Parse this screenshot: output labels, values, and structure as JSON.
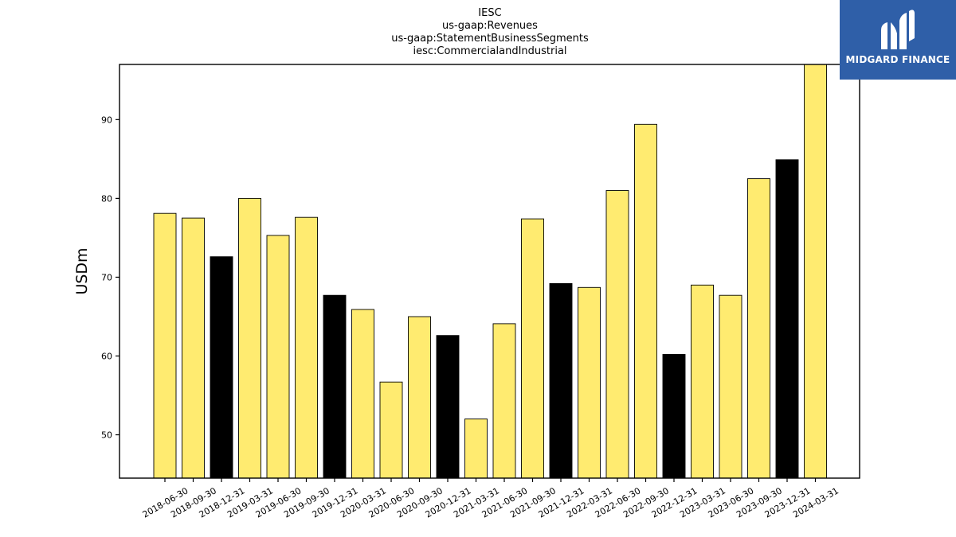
{
  "chart_data": {
    "type": "bar",
    "title_lines": [
      "IESC",
      "us-gaap:Revenues",
      "us-gaap:StatementBusinessSegments",
      "iesc:CommercialandIndustrial"
    ],
    "xlabel": "",
    "ylabel": "USDm",
    "ylim": [
      44.5,
      97
    ],
    "yticks": [
      50,
      60,
      70,
      80,
      90
    ],
    "categories": [
      "2018-06-30",
      "2018-09-30",
      "2018-12-31",
      "2019-03-31",
      "2019-06-30",
      "2019-09-30",
      "2019-12-31",
      "2020-03-31",
      "2020-06-30",
      "2020-09-30",
      "2020-12-31",
      "2021-03-31",
      "2021-06-30",
      "2021-09-30",
      "2021-12-31",
      "2022-03-31",
      "2022-06-30",
      "2022-09-30",
      "2022-12-31",
      "2023-03-31",
      "2023-06-30",
      "2023-09-30",
      "2023-12-31",
      "2024-03-31"
    ],
    "values": [
      78.1,
      77.5,
      72.6,
      80.0,
      75.3,
      77.6,
      67.7,
      65.9,
      56.7,
      65.0,
      62.6,
      52.0,
      64.1,
      77.4,
      69.2,
      68.7,
      81.0,
      89.4,
      60.2,
      69.0,
      67.7,
      82.5,
      84.9,
      97.0
    ],
    "bar_colors": [
      "#ffeb70",
      "#ffeb70",
      "#000000",
      "#ffeb70",
      "#ffeb70",
      "#ffeb70",
      "#000000",
      "#ffeb70",
      "#ffeb70",
      "#ffeb70",
      "#000000",
      "#ffeb70",
      "#ffeb70",
      "#ffeb70",
      "#000000",
      "#ffeb70",
      "#ffeb70",
      "#ffeb70",
      "#000000",
      "#ffeb70",
      "#ffeb70",
      "#ffeb70",
      "#000000",
      "#ffeb70"
    ],
    "grid": false,
    "legend": "none"
  },
  "logo": {
    "text": "MIDGARD FINANCE",
    "icon": "midgard-finance-logo-icon",
    "background": "#2f5fa8"
  }
}
